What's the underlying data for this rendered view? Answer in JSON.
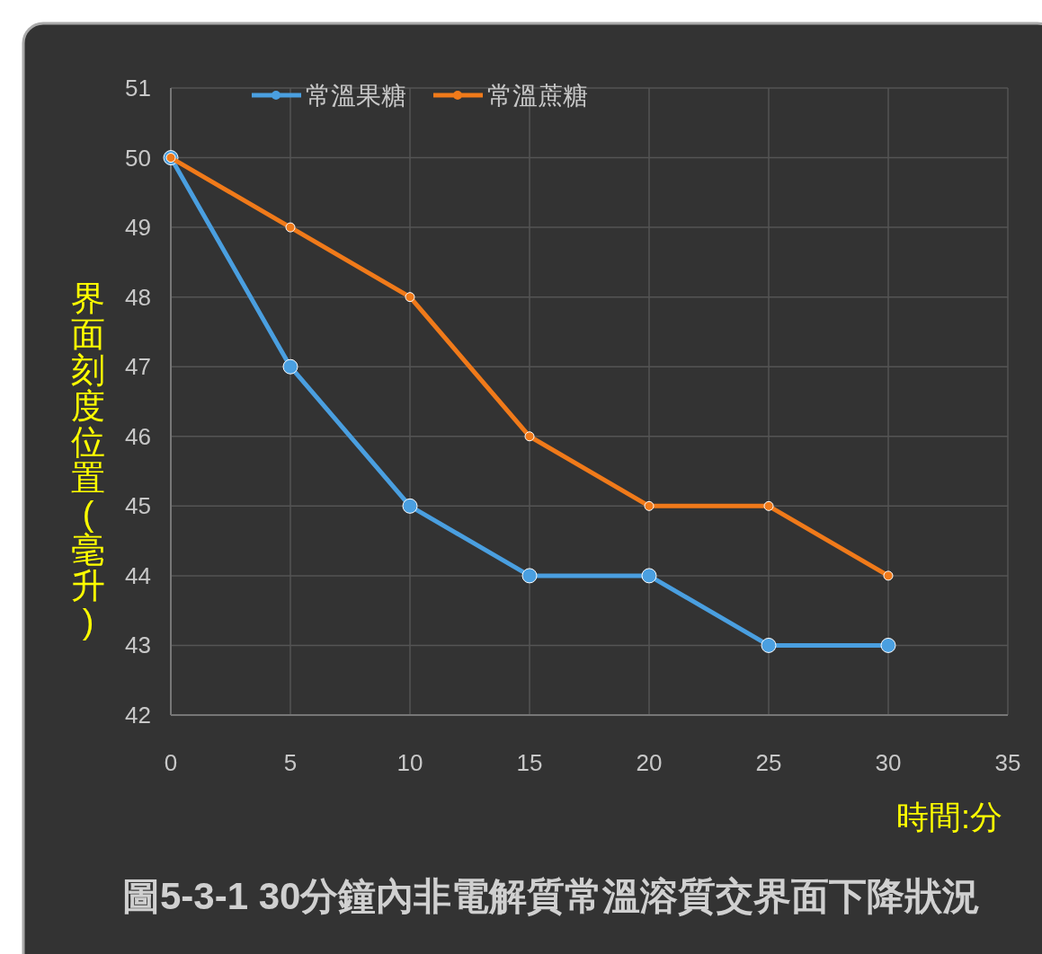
{
  "chart_data": {
    "type": "line",
    "title": "圖5-3-1  30分鐘內非電解質常溫溶質交界面下降狀況",
    "xlabel": "時間:分",
    "ylabel": "界面刻度位置(毫升)",
    "x": [
      0,
      5,
      10,
      15,
      20,
      25,
      30
    ],
    "series": [
      {
        "name": "常溫果糖",
        "color": "#4a9fe0",
        "values": [
          50,
          47,
          45,
          44,
          44,
          43,
          43
        ]
      },
      {
        "name": "常溫蔗糖",
        "color": "#f07a1a",
        "values": [
          50,
          49,
          48,
          46,
          45,
          45,
          44
        ]
      }
    ],
    "xlim": [
      0,
      35
    ],
    "xticks": [
      0,
      5,
      10,
      15,
      20,
      25,
      30,
      35
    ],
    "ylim": [
      42,
      51
    ],
    "yticks": [
      42,
      43,
      44,
      45,
      46,
      47,
      48,
      49,
      50,
      51
    ],
    "grid": true,
    "legend": "top",
    "marker": "circle",
    "line_style": "solid"
  }
}
